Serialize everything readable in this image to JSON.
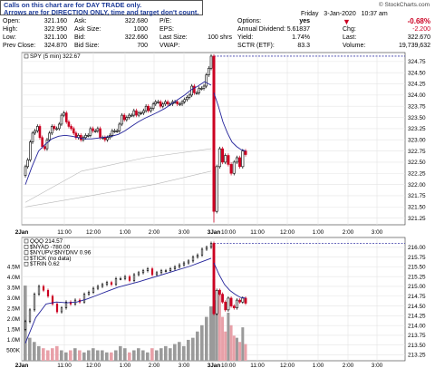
{
  "note": {
    "line1": "Calls on this chart are for DAY TRADE only.",
    "line2": "Arrows are for DIRECTION ONLY, time and target don't count."
  },
  "logo": "© StockCharts.com",
  "date": {
    "day": "Friday",
    "date": "3-Jan-2020",
    "time": "10:37 am"
  },
  "quote": {
    "open_label": "Open:",
    "open": "321.160",
    "high_label": "High:",
    "high": "322.950",
    "low_label": "Low:",
    "low": "321.100",
    "prevclose_label": "Prev Close:",
    "prevclose": "324.870",
    "ask_label": "Ask:",
    "ask": "322.680",
    "asksize_label": "Ask Size:",
    "asksize": "1000",
    "bid_label": "Bid:",
    "bid": "322.660",
    "bidsize_label": "Bid Size:",
    "bidsize": "700",
    "pe_label": "P/E:",
    "pe": "",
    "eps_label": "EPS:",
    "eps": "",
    "lastsize_label": "Last Size:",
    "lastsize": "100 shrs",
    "vwap_label": "VWAP:",
    "vwap": "",
    "options_label": "Options:",
    "options": "yes",
    "dividend_label": "Annual Dividend:",
    "dividend": "5.61837",
    "yield_label": "Yield:",
    "yield": "1.74%",
    "sctr_label": "SCTR (ETF):",
    "sctr": "83.3",
    "pct_change": "-0.68%",
    "chg_label": "Chg:",
    "chg": "-2.200",
    "last_label": "Last:",
    "last": "322.670",
    "volume_label": "Volume:",
    "volume": "19,739,632"
  },
  "colors": {
    "up": "#000000",
    "down": "#cc0022",
    "ma": "#22229a",
    "guide": "#b8b8b8",
    "dotted": "#3a3aa8",
    "vol_up": "#9a9a9a",
    "vol_down": "#e8a0a8",
    "neg": "#cc0022"
  },
  "chart_data": [
    {
      "type": "candlestick",
      "legend": "SPY (5 min) 322.67",
      "x_ticks": [
        "2Jan",
        "11:00",
        "12:00",
        "1:00",
        "2:00",
        "3:00",
        "3Jan",
        "10:00",
        "11:00",
        "12:00",
        "1:00",
        "2:00",
        "3:00"
      ],
      "y_ticks": [
        321.25,
        321.5,
        321.75,
        322.0,
        322.25,
        322.5,
        322.75,
        323.0,
        323.25,
        323.5,
        323.75,
        324.0,
        324.25,
        324.5,
        324.75
      ],
      "ylim": [
        321.1,
        324.95
      ],
      "last_price": 322.67,
      "day1_close": [
        322.4,
        322.55,
        322.95,
        323.15,
        323.2,
        323.3,
        323.05,
        322.85,
        322.8,
        323.0,
        323.15,
        323.3,
        323.25,
        323.25,
        323.35,
        323.55,
        323.6,
        323.4,
        323.3,
        323.25,
        323.15,
        323.05,
        323.1,
        323.0,
        323.05,
        323.1,
        323.1,
        323.25,
        323.2,
        323.2,
        323.25,
        323.05,
        323.05,
        323.0,
        323.05,
        323.1,
        323.2,
        323.2,
        323.2,
        323.35,
        323.55,
        323.45,
        323.5,
        323.55,
        323.55,
        323.65,
        323.55,
        323.6,
        323.6,
        323.65,
        323.75,
        323.65,
        323.7,
        323.8,
        323.85,
        323.85,
        323.75,
        323.8,
        323.85,
        323.8,
        323.8,
        323.85,
        323.85,
        323.8,
        323.8,
        323.85,
        323.9,
        323.95,
        324.0,
        324.2,
        324.05,
        324.05,
        324.15,
        324.15,
        324.2,
        324.45,
        324.6,
        324.87
      ],
      "day2_close": [
        321.4,
        322.4,
        322.8,
        322.5,
        322.65,
        322.45,
        322.25,
        322.5,
        322.6,
        322.4,
        322.75,
        322.67
      ],
      "ma_day1": [
        322.0,
        322.4,
        322.75,
        322.9,
        323.02,
        323.08,
        323.1,
        323.08,
        323.05,
        323.02,
        323.02,
        323.04,
        323.06,
        323.08,
        323.12,
        323.2,
        323.3,
        323.4,
        323.48,
        323.55,
        323.62,
        323.7,
        323.8,
        323.9,
        324.0,
        324.12,
        324.2,
        324.3,
        324.22
      ],
      "ma_day2": [
        324.05,
        323.75,
        323.4,
        323.15,
        322.95,
        322.85,
        322.78,
        322.75
      ]
    },
    {
      "type": "line",
      "legend": [
        "QQQ 214.57",
        "$NYAD -780.00",
        "$NYUPV:$NYDNV 0.96",
        "$TICK (no data)",
        "$TRIN 0.62"
      ],
      "y_ticks": [
        213.25,
        213.5,
        213.75,
        214.0,
        214.25,
        214.5,
        214.75,
        215.0,
        215.25,
        215.5,
        215.75,
        216.0
      ],
      "ylim": [
        213.1,
        216.25
      ],
      "volume_ticks": [
        "500K",
        "1.0M",
        "1.5M",
        "2.0M",
        "2.5M",
        "3.0M",
        "3.5M",
        "4.0M",
        "4.5M"
      ],
      "volume_max": 4.6,
      "day1_close": [
        214.1,
        214.4,
        214.8,
        215.0,
        214.9,
        214.75,
        214.55,
        214.35,
        214.45,
        214.6,
        214.55,
        214.65,
        214.6,
        214.8,
        214.85,
        214.95,
        215.0,
        215.05,
        215.1,
        215.05,
        215.2,
        215.2,
        215.25,
        215.15,
        215.3,
        215.35,
        215.4,
        215.45,
        215.3,
        215.35,
        215.4,
        215.4,
        215.45,
        215.5,
        215.55,
        215.6,
        215.65,
        215.75,
        215.8,
        215.95,
        216.0,
        216.1
      ],
      "day2_close": [
        214.3,
        214.9,
        214.8,
        214.6,
        214.4,
        214.7,
        214.5,
        214.45,
        214.65,
        214.6,
        214.7,
        214.57
      ],
      "volume_day1": [
        3.6,
        1.1,
        0.9,
        0.7,
        0.6,
        0.5,
        0.6,
        0.7,
        0.5,
        0.4,
        0.5,
        0.6,
        0.5,
        0.4,
        0.5,
        0.6,
        0.5,
        0.5,
        0.4,
        0.4,
        0.5,
        0.7,
        0.6,
        0.4,
        0.5,
        0.6,
        0.5,
        0.4,
        0.6,
        0.5,
        0.6,
        0.7,
        0.6,
        0.8,
        0.9,
        0.7,
        1.0,
        1.1,
        1.4,
        1.7,
        2.1,
        2.6
      ],
      "volume_day2": [
        3.9,
        2.9,
        3.4,
        2.1,
        1.4,
        2.3,
        1.7,
        1.2,
        1.1,
        0.9,
        1.6,
        0.8
      ],
      "ma_day1": [
        213.55,
        214.2,
        214.55,
        214.6,
        214.58,
        214.6,
        214.68,
        214.78,
        214.88,
        214.98,
        215.05,
        215.12,
        215.2,
        215.28,
        215.36,
        215.44,
        215.52,
        215.62,
        215.72
      ],
      "ma_day2": [
        215.6,
        215.3,
        215.05,
        214.9,
        214.8,
        214.72,
        214.7
      ]
    }
  ]
}
